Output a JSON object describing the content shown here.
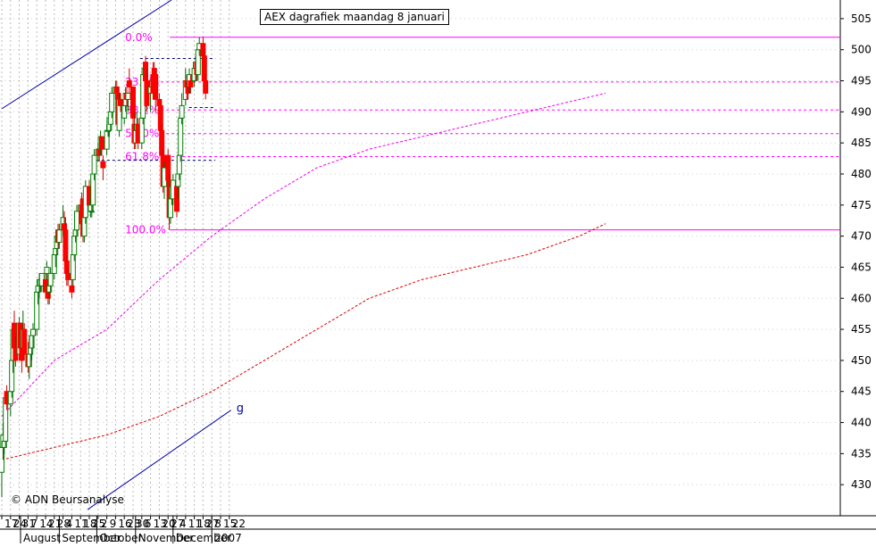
{
  "chart_data": {
    "type": "candlestick",
    "title": "AEX dagrafiek maandag 8 januari",
    "credit": "© ADN Beursanalyse",
    "ylim": [
      425,
      508
    ],
    "yticks": [
      430,
      435,
      440,
      445,
      450,
      455,
      460,
      465,
      470,
      475,
      480,
      485,
      490,
      495,
      500,
      505
    ],
    "x_ticks": [
      "17",
      "24",
      "31",
      "7",
      "14",
      "21",
      "28",
      "4",
      "11",
      "18",
      "25",
      "2",
      "9",
      "16",
      "23",
      "30",
      "6",
      "13",
      "20",
      "27",
      "4",
      "11",
      "18",
      "27",
      "8",
      "15",
      "22"
    ],
    "months": [
      "August",
      "September",
      "October",
      "November",
      "December",
      "2007"
    ],
    "colors": {
      "up": "#008000",
      "down": "#ff0000",
      "fib": "#ff00ff",
      "trend": "#0000aa",
      "ma_short": "#ee00ee",
      "ma_long": "#dd0000",
      "grid": "#bbbbbb"
    },
    "candles": [
      {
        "o": 432,
        "h": 437,
        "l": 428,
        "c": 436
      },
      {
        "o": 436,
        "h": 440,
        "l": 434,
        "c": 438
      },
      {
        "o": 436,
        "h": 439,
        "l": 435,
        "c": 437
      },
      {
        "o": 437,
        "h": 445,
        "l": 436,
        "c": 444
      },
      {
        "o": 445,
        "h": 446,
        "l": 442,
        "c": 443
      },
      {
        "o": 443,
        "h": 446,
        "l": 441,
        "c": 445
      },
      {
        "o": 445,
        "h": 451,
        "l": 444,
        "c": 450
      },
      {
        "o": 450,
        "h": 456,
        "l": 448,
        "c": 455
      },
      {
        "o": 456,
        "h": 458,
        "l": 450,
        "c": 452
      },
      {
        "o": 452,
        "h": 454,
        "l": 449,
        "c": 450
      },
      {
        "o": 451,
        "h": 457,
        "l": 450,
        "c": 456
      },
      {
        "o": 456,
        "h": 456,
        "l": 451,
        "c": 452
      },
      {
        "o": 452,
        "h": 454,
        "l": 448,
        "c": 450
      },
      {
        "o": 452,
        "h": 458,
        "l": 451,
        "c": 455
      },
      {
        "o": 455,
        "h": 456,
        "l": 450,
        "c": 451
      },
      {
        "o": 451,
        "h": 453,
        "l": 448,
        "c": 449
      },
      {
        "o": 449,
        "h": 454,
        "l": 447,
        "c": 451
      },
      {
        "o": 451,
        "h": 453,
        "l": 449,
        "c": 452
      },
      {
        "o": 452,
        "h": 455,
        "l": 450,
        "c": 454
      },
      {
        "o": 454,
        "h": 456,
        "l": 452,
        "c": 455
      },
      {
        "o": 455,
        "h": 462,
        "l": 454,
        "c": 461
      },
      {
        "o": 461,
        "h": 463,
        "l": 459,
        "c": 462
      },
      {
        "o": 462,
        "h": 464,
        "l": 460,
        "c": 463
      },
      {
        "o": 462,
        "h": 464,
        "l": 461,
        "c": 463
      },
      {
        "o": 462,
        "h": 464,
        "l": 461,
        "c": 464
      },
      {
        "o": 463,
        "h": 464,
        "l": 460,
        "c": 461
      },
      {
        "o": 464,
        "h": 466,
        "l": 462,
        "c": 465
      },
      {
        "o": 463,
        "h": 464,
        "l": 459,
        "c": 460
      },
      {
        "o": 461,
        "h": 463,
        "l": 459,
        "c": 462
      },
      {
        "o": 462,
        "h": 465,
        "l": 461,
        "c": 464
      },
      {
        "o": 464,
        "h": 468,
        "l": 463,
        "c": 467
      },
      {
        "o": 467,
        "h": 469,
        "l": 465,
        "c": 468
      },
      {
        "o": 468,
        "h": 471,
        "l": 467,
        "c": 470
      },
      {
        "o": 471,
        "h": 472,
        "l": 468,
        "c": 469
      },
      {
        "o": 469,
        "h": 472,
        "l": 468,
        "c": 471
      },
      {
        "o": 471,
        "h": 475,
        "l": 470,
        "c": 473
      },
      {
        "o": 472,
        "h": 474,
        "l": 470,
        "c": 471
      },
      {
        "o": 471,
        "h": 473,
        "l": 465,
        "c": 466
      },
      {
        "o": 466,
        "h": 467,
        "l": 462,
        "c": 464
      },
      {
        "o": 464,
        "h": 465,
        "l": 462,
        "c": 463
      },
      {
        "o": 462,
        "h": 463,
        "l": 460,
        "c": 461
      },
      {
        "o": 463,
        "h": 468,
        "l": 462,
        "c": 467
      },
      {
        "o": 467,
        "h": 471,
        "l": 466,
        "c": 470
      },
      {
        "o": 470,
        "h": 472,
        "l": 469,
        "c": 471
      },
      {
        "o": 471,
        "h": 475,
        "l": 470,
        "c": 474
      },
      {
        "o": 474,
        "h": 476,
        "l": 472,
        "c": 475
      },
      {
        "o": 475,
        "h": 477,
        "l": 471,
        "c": 472
      },
      {
        "o": 476,
        "h": 476,
        "l": 469,
        "c": 470
      },
      {
        "o": 470,
        "h": 474,
        "l": 469,
        "c": 473
      },
      {
        "o": 473,
        "h": 479,
        "l": 472,
        "c": 478
      },
      {
        "o": 478,
        "h": 479,
        "l": 474,
        "c": 475
      },
      {
        "o": 474,
        "h": 476,
        "l": 473,
        "c": 475
      },
      {
        "o": 474,
        "h": 475,
        "l": 473,
        "c": 474
      },
      {
        "o": 475,
        "h": 481,
        "l": 474,
        "c": 480
      },
      {
        "o": 480,
        "h": 484,
        "l": 479,
        "c": 483
      },
      {
        "o": 483,
        "h": 485,
        "l": 482,
        "c": 484
      },
      {
        "o": 484,
        "h": 485,
        "l": 482,
        "c": 483
      },
      {
        "o": 484,
        "h": 487,
        "l": 483,
        "c": 486
      },
      {
        "o": 486,
        "h": 486,
        "l": 483,
        "c": 484
      },
      {
        "o": 482,
        "h": 483,
        "l": 479,
        "c": 481
      },
      {
        "o": 484,
        "h": 488,
        "l": 483,
        "c": 487
      },
      {
        "o": 487,
        "h": 488,
        "l": 486,
        "c": 487
      },
      {
        "o": 487,
        "h": 490,
        "l": 486,
        "c": 489
      },
      {
        "o": 488,
        "h": 491,
        "l": 487,
        "c": 490
      },
      {
        "o": 490,
        "h": 494,
        "l": 489,
        "c": 493
      },
      {
        "o": 493,
        "h": 495,
        "l": 492,
        "c": 494
      },
      {
        "o": 494,
        "h": 495,
        "l": 492,
        "c": 493
      },
      {
        "o": 493,
        "h": 494,
        "l": 487,
        "c": 488
      },
      {
        "o": 487,
        "h": 493,
        "l": 486,
        "c": 492
      },
      {
        "o": 492,
        "h": 493,
        "l": 490,
        "c": 491
      },
      {
        "o": 489,
        "h": 492,
        "l": 488,
        "c": 491
      },
      {
        "o": 491,
        "h": 494,
        "l": 490,
        "c": 493
      },
      {
        "o": 493,
        "h": 494,
        "l": 491,
        "c": 492
      },
      {
        "o": 492,
        "h": 493,
        "l": 490,
        "c": 493
      },
      {
        "o": 495,
        "h": 497,
        "l": 493,
        "c": 494
      },
      {
        "o": 494,
        "h": 494,
        "l": 488,
        "c": 489
      },
      {
        "o": 488,
        "h": 490,
        "l": 484,
        "c": 485
      },
      {
        "o": 485,
        "h": 488,
        "l": 484,
        "c": 487
      },
      {
        "o": 487,
        "h": 490,
        "l": 486,
        "c": 488
      },
      {
        "o": 488,
        "h": 489,
        "l": 484,
        "c": 485
      },
      {
        "o": 485,
        "h": 490,
        "l": 484,
        "c": 489
      },
      {
        "o": 489,
        "h": 497,
        "l": 488,
        "c": 496
      },
      {
        "o": 496,
        "h": 498,
        "l": 495,
        "c": 497
      },
      {
        "o": 498,
        "h": 499,
        "l": 494,
        "c": 495
      },
      {
        "o": 495,
        "h": 497,
        "l": 490,
        "c": 491
      },
      {
        "o": 493,
        "h": 495,
        "l": 490,
        "c": 494
      },
      {
        "o": 494,
        "h": 496,
        "l": 493,
        "c": 495
      },
      {
        "o": 496,
        "h": 498,
        "l": 492,
        "c": 493
      },
      {
        "o": 497,
        "h": 498,
        "l": 494,
        "c": 496
      },
      {
        "o": 496,
        "h": 497,
        "l": 490,
        "c": 492
      },
      {
        "o": 492,
        "h": 493,
        "l": 487,
        "c": 491
      },
      {
        "o": 491,
        "h": 492,
        "l": 485,
        "c": 487
      },
      {
        "o": 487,
        "h": 488,
        "l": 482,
        "c": 483
      },
      {
        "o": 483,
        "h": 484,
        "l": 477,
        "c": 478
      },
      {
        "o": 478,
        "h": 482,
        "l": 476,
        "c": 481
      },
      {
        "o": 483,
        "h": 484,
        "l": 478,
        "c": 479
      },
      {
        "o": 479,
        "h": 480,
        "l": 471,
        "c": 473
      },
      {
        "o": 473,
        "h": 477,
        "l": 472,
        "c": 476
      },
      {
        "o": 476,
        "h": 479,
        "l": 475,
        "c": 478
      },
      {
        "o": 476,
        "h": 480,
        "l": 475,
        "c": 479
      },
      {
        "o": 478,
        "h": 479,
        "l": 473,
        "c": 474
      },
      {
        "o": 478,
        "h": 481,
        "l": 476,
        "c": 480
      },
      {
        "o": 480,
        "h": 484,
        "l": 479,
        "c": 483
      },
      {
        "o": 483,
        "h": 490,
        "l": 482,
        "c": 489
      },
      {
        "o": 489,
        "h": 493,
        "l": 488,
        "c": 491
      },
      {
        "o": 492,
        "h": 497,
        "l": 491,
        "c": 495
      },
      {
        "o": 495,
        "h": 496,
        "l": 492,
        "c": 494
      },
      {
        "o": 495,
        "h": 496,
        "l": 492,
        "c": 493
      },
      {
        "o": 494,
        "h": 497,
        "l": 493,
        "c": 496
      },
      {
        "o": 495,
        "h": 496,
        "l": 493,
        "c": 494
      },
      {
        "o": 495,
        "h": 498,
        "l": 494,
        "c": 497
      },
      {
        "o": 497,
        "h": 499,
        "l": 495,
        "c": 498
      },
      {
        "o": 498,
        "h": 499,
        "l": 495,
        "c": 496
      },
      {
        "o": 496,
        "h": 501,
        "l": 495,
        "c": 500
      },
      {
        "o": 500,
        "h": 502,
        "l": 499,
        "c": 501
      },
      {
        "o": 501,
        "h": 502,
        "l": 498,
        "c": 499
      },
      {
        "o": 499,
        "h": 500,
        "l": 494,
        "c": 495
      },
      {
        "o": 495,
        "h": 496,
        "l": 492,
        "c": 493
      }
    ],
    "ma_short": [
      [
        0,
        441
      ],
      [
        30,
        450
      ],
      [
        60,
        455
      ],
      [
        90,
        463
      ],
      [
        120,
        470
      ],
      [
        150,
        476
      ],
      [
        180,
        481
      ],
      [
        210,
        484
      ],
      [
        240,
        486
      ],
      [
        270,
        488
      ],
      [
        300,
        490
      ],
      [
        330,
        492
      ],
      [
        345,
        493
      ]
    ],
    "ma_long": [
      [
        0,
        434
      ],
      [
        30,
        436
      ],
      [
        60,
        438
      ],
      [
        90,
        441
      ],
      [
        120,
        445
      ],
      [
        150,
        450
      ],
      [
        180,
        455
      ],
      [
        210,
        460
      ],
      [
        240,
        463
      ],
      [
        270,
        465
      ],
      [
        300,
        467
      ],
      [
        330,
        470
      ],
      [
        345,
        472
      ]
    ],
    "fib": {
      "labels": [
        "0.0%",
        "23.6%",
        "38.2%",
        "50.0%",
        "61.8%",
        "100.0%"
      ],
      "values": [
        502,
        494.8,
        490.3,
        486.5,
        482.8,
        471
      ]
    },
    "support_resistance": [
      498.6,
      490.7,
      482.2
    ],
    "trend_upper": [
      [
        0,
        490.5
      ],
      [
        97,
        508
      ]
    ],
    "trend_lower": [
      [
        49,
        426
      ],
      [
        131,
        442
      ]
    ],
    "trend_label": "g"
  }
}
